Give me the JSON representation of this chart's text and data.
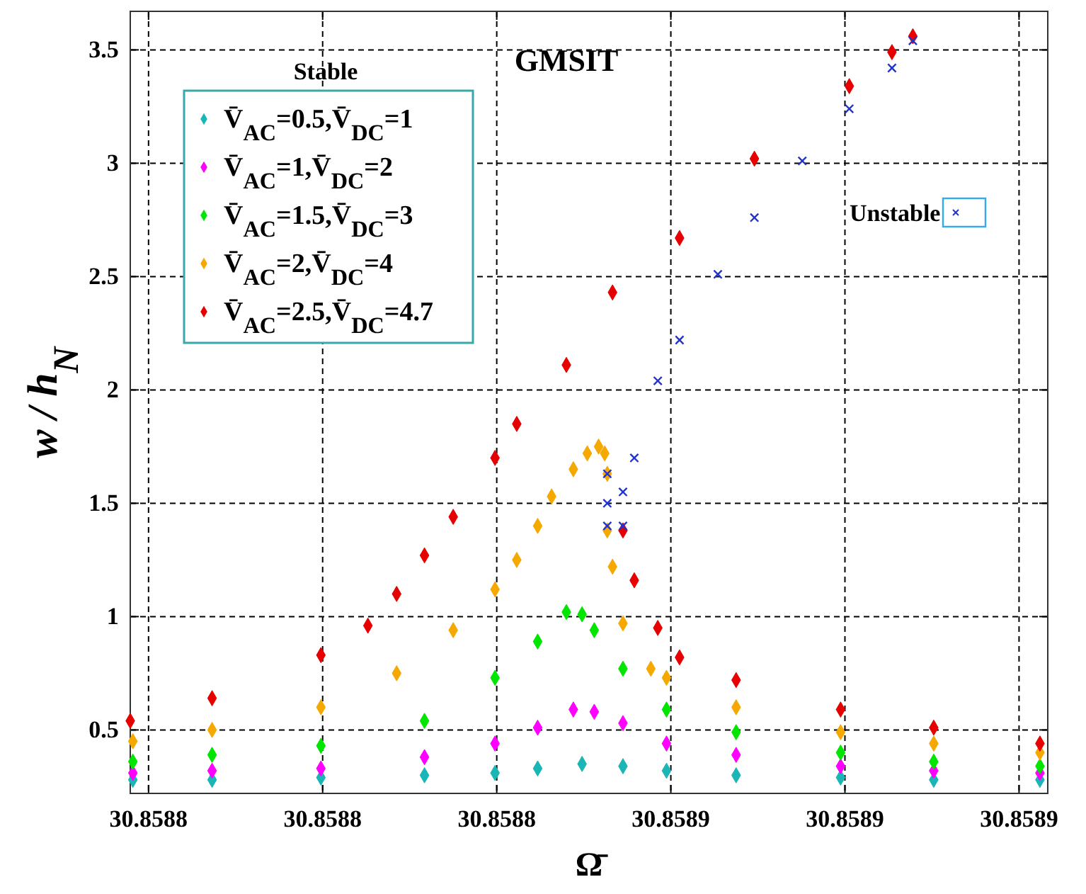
{
  "chart_data": {
    "type": "scatter",
    "title": "GMSIT",
    "xlabel": "Ω̄",
    "ylabel": "w / h$_{N}$",
    "legend_title": "Stable",
    "legend": "top left",
    "grid": true,
    "marker": "diamond",
    "xlim": [
      30.8587979,
      30.8589033
    ],
    "ylim": [
      0.22,
      3.67
    ],
    "xticks": [
      {
        "value": 30.8588,
        "label": "30.8588"
      },
      {
        "value": 30.85882,
        "label": "30.8588"
      },
      {
        "value": 30.85884,
        "label": "30.8588"
      },
      {
        "value": 30.85886,
        "label": "30.8589"
      },
      {
        "value": 30.85888,
        "label": "30.8589"
      },
      {
        "value": 30.8589,
        "label": "30.8589"
      }
    ],
    "yticks": [
      0.5,
      1,
      1.5,
      2,
      2.5,
      3,
      3.5
    ],
    "series": [
      {
        "name": "V̄$_{AC}$=0.5,V̄$_{DC}$=1",
        "color": "#1ab5b5",
        "x": [
          30.8587982,
          30.8588073,
          30.8588198,
          30.8588317,
          30.8588398,
          30.8588447,
          30.8588498,
          30.8588545,
          30.8588595,
          30.8588675,
          30.8588795,
          30.8588902,
          30.8589024
        ],
        "values": [
          0.28,
          0.28,
          0.29,
          0.3,
          0.31,
          0.33,
          0.35,
          0.34,
          0.32,
          0.3,
          0.29,
          0.28,
          0.28
        ]
      },
      {
        "name": "V̄$_{AC}$=1,V̄$_{DC}$=2",
        "color": "#ff00ff",
        "x": [
          30.8587982,
          30.8588073,
          30.8588198,
          30.8588317,
          30.8588398,
          30.8588447,
          30.8588488,
          30.8588512,
          30.8588545,
          30.8588595,
          30.8588675,
          30.8588795,
          30.8588902,
          30.8589024
        ],
        "values": [
          0.31,
          0.32,
          0.33,
          0.38,
          0.44,
          0.51,
          0.59,
          0.58,
          0.53,
          0.44,
          0.39,
          0.34,
          0.32,
          0.31
        ]
      },
      {
        "name": "V̄$_{AC}$=1.5,V̄$_{DC}$=3",
        "color": "#00e600",
        "x": [
          30.8587982,
          30.8588073,
          30.8588198,
          30.8588317,
          30.8588398,
          30.8588447,
          30.858848,
          30.8588498,
          30.8588512,
          30.8588545,
          30.8588595,
          30.8588675,
          30.8588795,
          30.8588902,
          30.8589024
        ],
        "values": [
          0.36,
          0.39,
          0.43,
          0.54,
          0.73,
          0.89,
          1.02,
          1.01,
          0.94,
          0.77,
          0.59,
          0.49,
          0.4,
          0.36,
          0.34
        ]
      },
      {
        "name": "V̄$_{AC}$=2,V̄$_{DC}$=4",
        "color": "#f5a800",
        "x": [
          30.8587982,
          30.8588073,
          30.8588198,
          30.8588285,
          30.858835,
          30.8588398,
          30.8588423,
          30.8588447,
          30.8588463,
          30.8588488,
          30.8588504,
          30.8588517,
          30.8588524,
          30.8588527,
          30.8588527,
          30.8588533,
          30.8588545,
          30.8588577,
          30.8588595,
          30.8588675,
          30.8588795,
          30.8588902,
          30.8589024
        ],
        "values": [
          0.45,
          0.5,
          0.6,
          0.75,
          0.94,
          1.12,
          1.25,
          1.4,
          1.53,
          1.65,
          1.72,
          1.75,
          1.72,
          1.63,
          1.38,
          1.22,
          0.97,
          0.77,
          0.73,
          0.6,
          0.49,
          0.44,
          0.4
        ]
      },
      {
        "name": "V̄$_{AC}$=2.5,V̄$_{DC}$=4.7",
        "color": "#e60000",
        "x": [
          30.8587979,
          30.8588073,
          30.8588198,
          30.8588252,
          30.8588285,
          30.8588317,
          30.858835,
          30.8588398,
          30.8588423,
          30.858848,
          30.8588533,
          30.858861,
          30.8588696,
          30.8588805,
          30.8588854,
          30.8588878,
          30.8588545,
          30.8588558,
          30.8588585,
          30.858861,
          30.8588675,
          30.8588795,
          30.8588902,
          30.8589024
        ],
        "values": [
          0.54,
          0.64,
          0.83,
          0.96,
          1.1,
          1.27,
          1.44,
          1.7,
          1.85,
          2.11,
          2.43,
          2.67,
          3.02,
          3.34,
          3.49,
          3.56,
          1.38,
          1.16,
          0.95,
          0.82,
          0.72,
          0.59,
          0.51,
          0.44
        ]
      },
      {
        "name": "Unstable",
        "color": "#2233cc",
        "marker": "cross",
        "x": [
          30.8588527,
          30.8588527,
          30.8588527,
          30.8588545,
          30.8588545,
          30.8588558,
          30.8588585,
          30.858861,
          30.8588654,
          30.8588696,
          30.8588751,
          30.8588805,
          30.8588854,
          30.8588878
        ],
        "values": [
          1.63,
          1.5,
          1.4,
          1.4,
          1.55,
          1.7,
          2.04,
          2.22,
          2.51,
          2.76,
          3.01,
          3.24,
          3.42,
          3.54
        ]
      }
    ]
  }
}
